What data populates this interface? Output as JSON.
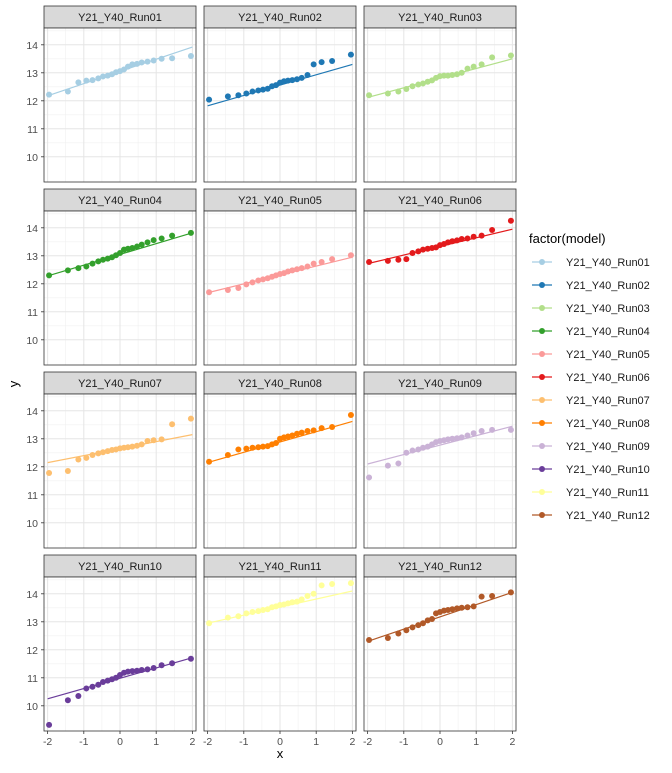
{
  "chart_data": {
    "type": "scatter",
    "facet_type": "qq-plot facets with fitted reference line",
    "xlabel": "x",
    "ylabel": "y",
    "x_ticks": [
      -2,
      -1,
      0,
      1,
      2
    ],
    "x_tick_labels": [
      "-2",
      "-1",
      "0",
      "1",
      "2"
    ],
    "y_ticks": [
      10,
      11,
      12,
      13,
      14
    ],
    "y_tick_labels": [
      "10",
      "11",
      "12",
      "13",
      "14"
    ],
    "xlim": [
      -2.1,
      2.1
    ],
    "ylim": [
      9.1,
      14.6
    ],
    "grid": true,
    "legend_title": "factor(model)",
    "legend_position": "right",
    "x": [
      -1.96,
      -1.44,
      -1.15,
      -0.93,
      -0.76,
      -0.6,
      -0.47,
      -0.34,
      -0.22,
      -0.11,
      0.0,
      0.11,
      0.22,
      0.34,
      0.47,
      0.6,
      0.76,
      0.93,
      1.15,
      1.44,
      1.96
    ],
    "series": [
      {
        "name": "Y21_Y40_Run01",
        "color": "#A6CEE3",
        "line": [
          [
            -2,
            12.18
          ],
          [
            2,
            13.92
          ]
        ],
        "y": [
          12.22,
          12.33,
          12.66,
          12.72,
          12.74,
          12.8,
          12.87,
          12.9,
          12.95,
          13.02,
          13.06,
          13.12,
          13.22,
          13.3,
          13.32,
          13.37,
          13.4,
          13.44,
          13.5,
          13.52,
          13.6
        ]
      },
      {
        "name": "Y21_Y40_Run02",
        "color": "#1F78B4",
        "line": [
          [
            -2,
            11.82
          ],
          [
            2,
            13.3
          ]
        ],
        "y": [
          12.04,
          12.16,
          12.2,
          12.26,
          12.33,
          12.37,
          12.4,
          12.43,
          12.52,
          12.56,
          12.65,
          12.7,
          12.72,
          12.74,
          12.77,
          12.82,
          12.92,
          13.3,
          13.38,
          13.42,
          13.65
        ]
      },
      {
        "name": "Y21_Y40_Run03",
        "color": "#B2DF8A",
        "line": [
          [
            -2,
            12.12
          ],
          [
            2,
            13.5
          ]
        ],
        "y": [
          12.2,
          12.26,
          12.33,
          12.42,
          12.52,
          12.58,
          12.62,
          12.68,
          12.73,
          12.82,
          12.88,
          12.9,
          12.9,
          12.92,
          12.95,
          13.0,
          13.15,
          13.22,
          13.3,
          13.55,
          13.62
        ]
      },
      {
        "name": "Y21_Y40_Run04",
        "color": "#33A02C",
        "line": [
          [
            -2,
            12.28
          ],
          [
            2,
            13.82
          ]
        ],
        "y": [
          12.3,
          12.48,
          12.56,
          12.62,
          12.72,
          12.8,
          12.86,
          12.9,
          12.95,
          13.02,
          13.1,
          13.22,
          13.25,
          13.28,
          13.33,
          13.4,
          13.48,
          13.56,
          13.62,
          13.72,
          13.82
        ]
      },
      {
        "name": "Y21_Y40_Run05",
        "color": "#FB9A99",
        "line": [
          [
            -2,
            11.68
          ],
          [
            2,
            12.95
          ]
        ],
        "y": [
          11.7,
          11.78,
          11.85,
          11.98,
          12.05,
          12.12,
          12.16,
          12.2,
          12.25,
          12.3,
          12.35,
          12.38,
          12.44,
          12.48,
          12.52,
          12.56,
          12.62,
          12.72,
          12.78,
          12.88,
          13.02
        ]
      },
      {
        "name": "Y21_Y40_Run06",
        "color": "#E31A1C",
        "line": [
          [
            -2,
            12.72
          ],
          [
            2,
            13.95
          ]
        ],
        "y": [
          12.78,
          12.82,
          12.86,
          12.88,
          13.1,
          13.16,
          13.22,
          13.25,
          13.28,
          13.3,
          13.38,
          13.42,
          13.48,
          13.52,
          13.55,
          13.6,
          13.62,
          13.68,
          13.72,
          13.92,
          14.25
        ]
      },
      {
        "name": "Y21_Y40_Run07",
        "color": "#FDBF6F",
        "line": [
          [
            -2,
            12.15
          ],
          [
            2,
            13.15
          ]
        ],
        "y": [
          11.78,
          11.85,
          12.26,
          12.32,
          12.42,
          12.48,
          12.52,
          12.56,
          12.6,
          12.62,
          12.66,
          12.68,
          12.7,
          12.72,
          12.75,
          12.8,
          12.92,
          12.95,
          12.98,
          13.52,
          13.72
        ]
      },
      {
        "name": "Y21_Y40_Run08",
        "color": "#FF7F00",
        "line": [
          [
            -2,
            12.15
          ],
          [
            2,
            13.62
          ]
        ],
        "y": [
          12.18,
          12.42,
          12.62,
          12.65,
          12.68,
          12.7,
          12.72,
          12.74,
          12.8,
          12.85,
          13.0,
          13.05,
          13.08,
          13.12,
          13.18,
          13.22,
          13.28,
          13.3,
          13.38,
          13.42,
          13.85
        ]
      },
      {
        "name": "Y21_Y40_Run09",
        "color": "#CAB2D6",
        "line": [
          [
            -2,
            12.1
          ],
          [
            2,
            13.45
          ]
        ],
        "y": [
          11.62,
          12.04,
          12.12,
          12.5,
          12.58,
          12.62,
          12.68,
          12.72,
          12.8,
          12.88,
          12.92,
          12.95,
          12.98,
          13.0,
          13.02,
          13.05,
          13.12,
          13.2,
          13.28,
          13.32,
          13.32
        ]
      },
      {
        "name": "Y21_Y40_Run10",
        "color": "#6A3D9A",
        "line": [
          [
            -2,
            10.25
          ],
          [
            2,
            11.72
          ]
        ],
        "y": [
          9.32,
          10.2,
          10.35,
          10.62,
          10.68,
          10.75,
          10.85,
          10.9,
          10.95,
          11.0,
          11.1,
          11.18,
          11.22,
          11.24,
          11.25,
          11.28,
          11.3,
          11.35,
          11.45,
          11.52,
          11.68
        ]
      },
      {
        "name": "Y21_Y40_Run11",
        "color": "#FFFF99",
        "line": [
          [
            -2,
            12.95
          ],
          [
            2,
            14.1
          ]
        ],
        "y": [
          12.95,
          13.15,
          13.2,
          13.3,
          13.35,
          13.38,
          13.42,
          13.45,
          13.52,
          13.55,
          13.6,
          13.62,
          13.66,
          13.7,
          13.72,
          13.8,
          13.92,
          14.0,
          14.3,
          14.35,
          14.38
        ]
      },
      {
        "name": "Y21_Y40_Run12",
        "color": "#B15928",
        "line": [
          [
            -2,
            12.3
          ],
          [
            2,
            14.05
          ]
        ],
        "y": [
          12.35,
          12.42,
          12.58,
          12.7,
          12.8,
          12.88,
          12.95,
          13.05,
          13.1,
          13.3,
          13.35,
          13.4,
          13.42,
          13.45,
          13.48,
          13.5,
          13.52,
          13.55,
          13.9,
          13.92,
          14.05
        ]
      }
    ]
  }
}
